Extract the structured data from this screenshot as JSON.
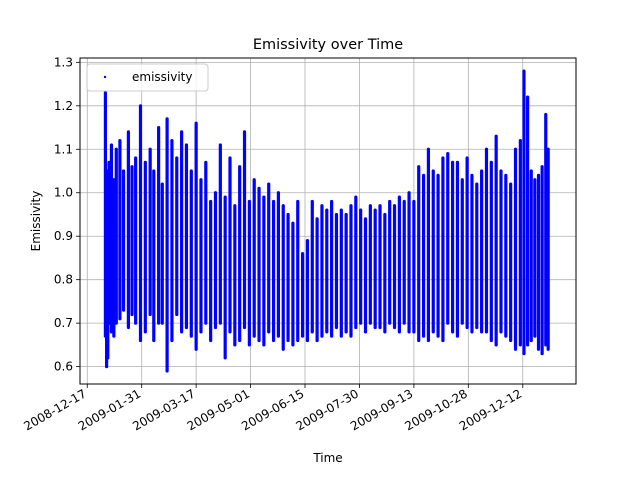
{
  "chart_data": {
    "type": "scatter",
    "title": "Emissivity over Time",
    "xlabel": "Time",
    "ylabel": "Emissivity",
    "x_tick_labels": [
      "2008-12-17",
      "2009-01-31",
      "2009-03-17",
      "2009-05-01",
      "2009-06-15",
      "2009-07-30",
      "2009-09-13",
      "2009-10-28",
      "2009-12-12"
    ],
    "y_tick_labels": [
      "0.6",
      "0.7",
      "0.8",
      "0.9",
      "1.0",
      "1.1",
      "1.2",
      "1.3"
    ],
    "xlim": [
      "2008-12-11",
      "2010-01-25"
    ],
    "ylim": [
      0.56,
      1.31
    ],
    "grid": true,
    "legend": {
      "position": "top-left",
      "entries": [
        "emissivity"
      ]
    },
    "series": [
      {
        "name": "emissivity",
        "color": "#0000ff",
        "marker": "point",
        "x": [
          "2009-01-01",
          "2009-01-02",
          "2009-01-03",
          "2009-01-04",
          "2009-01-06",
          "2009-01-08",
          "2009-01-10",
          "2009-01-13",
          "2009-01-16",
          "2009-01-20",
          "2009-01-23",
          "2009-01-26",
          "2009-01-30",
          "2009-02-03",
          "2009-02-07",
          "2009-02-10",
          "2009-02-14",
          "2009-02-17",
          "2009-02-21",
          "2009-02-25",
          "2009-03-01",
          "2009-03-05",
          "2009-03-09",
          "2009-03-13",
          "2009-03-17",
          "2009-03-21",
          "2009-03-25",
          "2009-03-29",
          "2009-04-02",
          "2009-04-06",
          "2009-04-10",
          "2009-04-14",
          "2009-04-18",
          "2009-04-22",
          "2009-04-26",
          "2009-04-30",
          "2009-05-04",
          "2009-05-08",
          "2009-05-12",
          "2009-05-16",
          "2009-05-20",
          "2009-05-24",
          "2009-05-28",
          "2009-06-01",
          "2009-06-05",
          "2009-06-09",
          "2009-06-13",
          "2009-06-17",
          "2009-06-21",
          "2009-06-25",
          "2009-06-29",
          "2009-07-03",
          "2009-07-07",
          "2009-07-11",
          "2009-07-15",
          "2009-07-19",
          "2009-07-23",
          "2009-07-27",
          "2009-07-31",
          "2009-08-04",
          "2009-08-08",
          "2009-08-12",
          "2009-08-16",
          "2009-08-20",
          "2009-08-24",
          "2009-08-28",
          "2009-09-01",
          "2009-09-05",
          "2009-09-09",
          "2009-09-13",
          "2009-09-17",
          "2009-09-21",
          "2009-09-25",
          "2009-09-29",
          "2009-10-03",
          "2009-10-07",
          "2009-10-11",
          "2009-10-15",
          "2009-10-19",
          "2009-10-23",
          "2009-10-27",
          "2009-10-31",
          "2009-11-04",
          "2009-11-08",
          "2009-11-12",
          "2009-11-16",
          "2009-11-20",
          "2009-11-24",
          "2009-11-28",
          "2009-12-02",
          "2009-12-06",
          "2009-12-10",
          "2009-12-13",
          "2009-12-16",
          "2009-12-19",
          "2009-12-22",
          "2009-12-25",
          "2009-12-28",
          "2009-12-31",
          "2010-01-02"
        ],
        "y_max": [
          1.23,
          1.05,
          1.0,
          1.07,
          1.11,
          1.03,
          1.1,
          1.12,
          1.05,
          1.14,
          1.06,
          1.08,
          1.2,
          1.07,
          1.1,
          1.05,
          1.15,
          1.02,
          1.17,
          1.12,
          1.08,
          1.14,
          1.11,
          1.05,
          1.16,
          1.03,
          1.07,
          0.98,
          1.0,
          1.11,
          0.99,
          1.08,
          0.97,
          1.06,
          1.14,
          0.98,
          1.03,
          1.01,
          0.99,
          1.02,
          0.98,
          1.0,
          0.97,
          0.95,
          0.93,
          0.98,
          0.86,
          0.89,
          0.98,
          0.94,
          0.97,
          0.96,
          0.98,
          0.95,
          0.96,
          0.95,
          0.97,
          0.99,
          0.96,
          0.94,
          0.97,
          0.96,
          0.97,
          0.95,
          0.98,
          0.97,
          0.99,
          0.98,
          1.0,
          0.98,
          1.06,
          1.04,
          1.1,
          1.05,
          1.04,
          1.08,
          1.09,
          1.07,
          1.07,
          1.03,
          1.08,
          1.04,
          1.02,
          1.05,
          1.1,
          1.07,
          1.13,
          1.05,
          1.04,
          1.02,
          1.1,
          1.12,
          1.28,
          1.22,
          1.05,
          1.03,
          1.04,
          1.06,
          1.18,
          1.1
        ],
        "y_min": [
          0.67,
          0.6,
          0.62,
          0.7,
          0.68,
          0.67,
          0.7,
          0.71,
          0.73,
          0.69,
          0.72,
          0.7,
          0.66,
          0.68,
          0.72,
          0.66,
          0.7,
          0.7,
          0.59,
          0.66,
          0.72,
          0.68,
          0.69,
          0.67,
          0.64,
          0.68,
          0.7,
          0.66,
          0.69,
          0.7,
          0.62,
          0.68,
          0.65,
          0.66,
          0.69,
          0.65,
          0.67,
          0.66,
          0.65,
          0.68,
          0.66,
          0.67,
          0.64,
          0.66,
          0.65,
          0.66,
          0.67,
          0.66,
          0.68,
          0.66,
          0.67,
          0.68,
          0.67,
          0.69,
          0.67,
          0.68,
          0.67,
          0.69,
          0.7,
          0.68,
          0.7,
          0.69,
          0.69,
          0.68,
          0.7,
          0.69,
          0.68,
          0.7,
          0.68,
          0.68,
          0.66,
          0.67,
          0.66,
          0.68,
          0.67,
          0.66,
          0.7,
          0.68,
          0.67,
          0.7,
          0.69,
          0.68,
          0.69,
          0.68,
          0.68,
          0.66,
          0.65,
          0.68,
          0.67,
          0.66,
          0.64,
          0.65,
          0.63,
          0.65,
          0.66,
          0.67,
          0.64,
          0.63,
          0.65,
          0.64
        ]
      }
    ]
  }
}
